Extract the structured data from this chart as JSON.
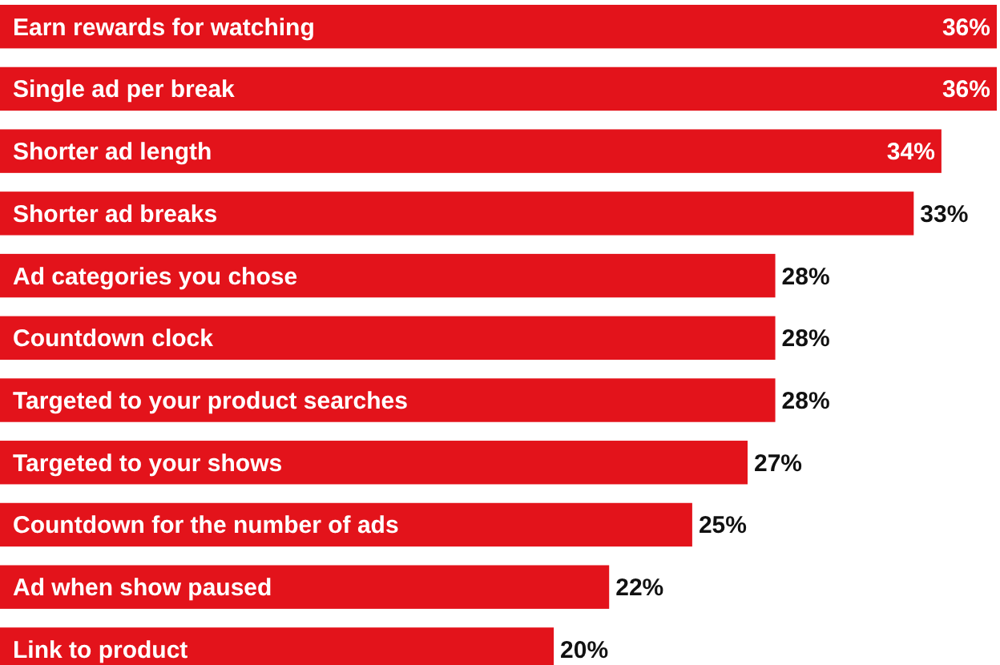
{
  "chart_data": {
    "type": "bar",
    "orientation": "horizontal",
    "categories": [
      "Earn rewards for watching",
      "Single ad per break",
      "Shorter ad length",
      "Shorter ad breaks",
      "Ad categories you chose",
      "Countdown clock",
      "Targeted to your product searches",
      "Targeted to your shows",
      "Countdown for the number of ads",
      "Ad when show paused",
      "Link to product"
    ],
    "values": [
      36,
      36,
      34,
      33,
      28,
      28,
      28,
      27,
      25,
      22,
      20
    ],
    "value_labels": [
      "36%",
      "36%",
      "34%",
      "33%",
      "28%",
      "28%",
      "28%",
      "27%",
      "25%",
      "22%",
      "20%"
    ],
    "color": "#e3131b"
  }
}
